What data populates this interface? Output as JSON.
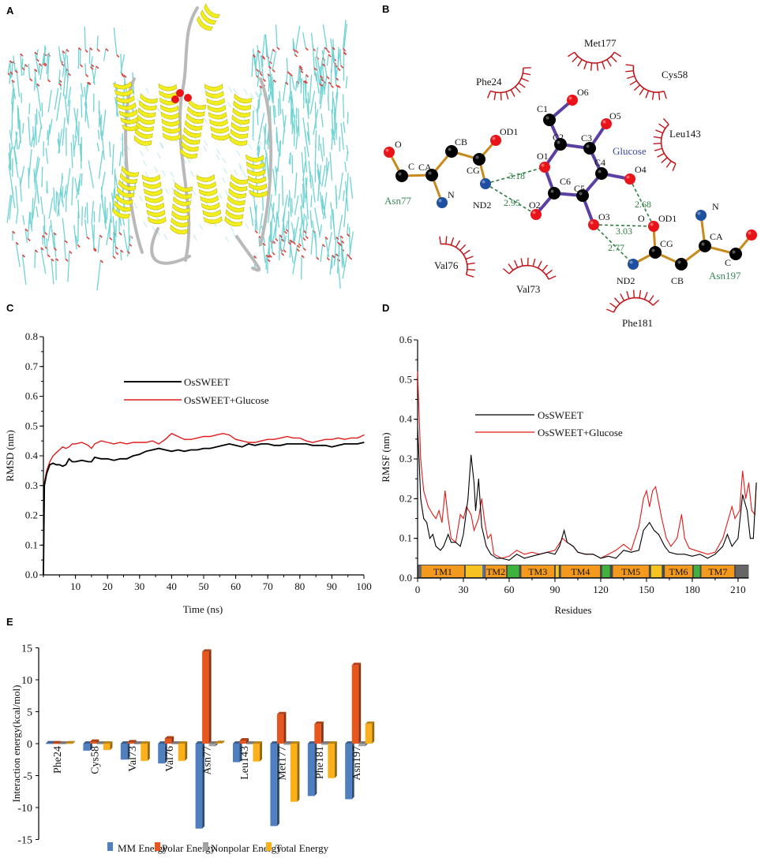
{
  "panel_labels": {
    "a": "A",
    "b": "B",
    "c": "C",
    "d": "D",
    "e": "E"
  },
  "panel_a": {
    "description_colors": {
      "helix": "#f2ee1e",
      "loop": "#b9b9b9",
      "lipid": "#6fd3d3",
      "lipid_oxygen": "#e0413c",
      "ligand": "#e8141a"
    }
  },
  "panel_b": {
    "ligand": {
      "name": "Glucose",
      "atoms": {
        "C1": "C1",
        "C2": "C2",
        "C3": "C3",
        "C4": "C4",
        "C5": "C5",
        "C6": "C6",
        "O1": "O1",
        "O2": "O2",
        "O3": "O3",
        "O4": "O4",
        "O5": "O5",
        "O6": "O6"
      }
    },
    "residue_asn77": {
      "name": "Asn77",
      "atoms": {
        "O": "O",
        "C": "C",
        "CA": "CA",
        "N": "N",
        "CB": "CB",
        "CG": "CG",
        "OD1": "OD1",
        "ND2": "ND2"
      }
    },
    "residue_asn197": {
      "name": "Asn197",
      "atoms": {
        "O": "O",
        "OD1": "OD1",
        "CG": "CG",
        "ND2": "ND2",
        "CB": "CB",
        "CA": "CA",
        "N": "N",
        "C": "C"
      }
    },
    "hbonds": [
      "3.18",
      "2.95",
      "2.68",
      "3.03",
      "2.77"
    ],
    "hydrophobic": [
      "Met177",
      "Phe24",
      "Cys58",
      "Leu143",
      "Val76",
      "Val73",
      "Phe181"
    ],
    "colors": {
      "oxygen": "#e8141a",
      "nitrogen": "#1f4fa0",
      "carbon": "#000000",
      "ligand_bond": "#5b3fa3",
      "residue_bond": "#c98a1c",
      "hbond": "#2e7d3e",
      "hydrophobic": "#c0151b"
    }
  },
  "chart_data": [
    {
      "id": "C",
      "type": "line",
      "xlabel": "Time (ns)",
      "ylabel": "RMSD (nm)",
      "xlim": [
        0,
        100
      ],
      "ylim": [
        0,
        0.8
      ],
      "xticks": [
        "10",
        "20",
        "30",
        "40",
        "50",
        "60",
        "70",
        "80",
        "90",
        "100"
      ],
      "yticks": [
        "0.0",
        "0.1",
        "0.2",
        "0.3",
        "0.4",
        "0.5",
        "0.6",
        "0.7",
        "0.8"
      ],
      "legend": "top-center",
      "x": [
        0,
        0.3,
        1,
        2,
        3,
        4,
        5,
        6,
        7,
        8,
        9,
        10,
        12,
        14,
        15,
        16,
        18,
        20,
        22,
        24,
        26,
        28,
        30,
        32,
        34,
        36,
        38,
        40,
        42,
        44,
        46,
        48,
        50,
        52,
        54,
        56,
        58,
        60,
        62,
        64,
        66,
        68,
        70,
        72,
        74,
        76,
        78,
        80,
        82,
        84,
        86,
        88,
        90,
        92,
        94,
        96,
        98,
        100
      ],
      "series": [
        {
          "name": "OsSWEET",
          "color": "#000000",
          "values": [
            0,
            0.3,
            0.34,
            0.37,
            0.375,
            0.37,
            0.37,
            0.365,
            0.37,
            0.39,
            0.38,
            0.38,
            0.385,
            0.38,
            0.38,
            0.395,
            0.39,
            0.39,
            0.385,
            0.39,
            0.39,
            0.4,
            0.405,
            0.415,
            0.42,
            0.425,
            0.42,
            0.415,
            0.42,
            0.415,
            0.42,
            0.42,
            0.425,
            0.425,
            0.43,
            0.435,
            0.44,
            0.435,
            0.43,
            0.44,
            0.435,
            0.44,
            0.44,
            0.435,
            0.435,
            0.44,
            0.44,
            0.44,
            0.44,
            0.435,
            0.435,
            0.435,
            0.43,
            0.435,
            0.44,
            0.44,
            0.44,
            0.445
          ]
        },
        {
          "name": "OsSWEET+Glucose",
          "color": "#e01a1a",
          "values": [
            0,
            0.31,
            0.35,
            0.38,
            0.4,
            0.41,
            0.42,
            0.43,
            0.425,
            0.43,
            0.44,
            0.44,
            0.445,
            0.435,
            0.425,
            0.44,
            0.45,
            0.445,
            0.44,
            0.445,
            0.44,
            0.445,
            0.445,
            0.445,
            0.45,
            0.44,
            0.455,
            0.475,
            0.465,
            0.455,
            0.455,
            0.46,
            0.465,
            0.465,
            0.47,
            0.475,
            0.47,
            0.455,
            0.45,
            0.445,
            0.445,
            0.45,
            0.455,
            0.455,
            0.46,
            0.465,
            0.46,
            0.46,
            0.45,
            0.445,
            0.45,
            0.455,
            0.455,
            0.46,
            0.455,
            0.46,
            0.46,
            0.47
          ]
        }
      ]
    },
    {
      "id": "D",
      "type": "line",
      "xlabel": "Residues",
      "ylabel": "RMSF (nm)",
      "xlim": [
        0,
        217
      ],
      "ylim": [
        0,
        0.6
      ],
      "xticks": [
        "0",
        "30",
        "60",
        "90",
        "120",
        "150",
        "180",
        "210"
      ],
      "yticks": [
        "0.0",
        "0.1",
        "0.2",
        "0.3",
        "0.4",
        "0.5",
        "0.6"
      ],
      "legend": "top-center",
      "series": [
        {
          "name": "OsSWEET",
          "color": "#000000",
          "x": [
            0,
            1,
            2,
            4,
            6,
            8,
            10,
            12,
            15,
            17,
            20,
            22,
            25,
            28,
            30,
            33,
            35,
            37,
            38,
            40,
            42,
            45,
            48,
            52,
            55,
            60,
            65,
            70,
            75,
            80,
            85,
            90,
            93,
            96,
            98,
            102,
            105,
            110,
            115,
            120,
            125,
            130,
            135,
            140,
            145,
            148,
            152,
            155,
            158,
            162,
            165,
            170,
            175,
            180,
            185,
            190,
            195,
            200,
            203,
            206,
            210,
            213,
            216,
            218,
            220,
            222
          ],
          "values": [
            0.38,
            0.3,
            0.2,
            0.15,
            0.14,
            0.1,
            0.11,
            0.08,
            0.07,
            0.08,
            0.11,
            0.09,
            0.09,
            0.08,
            0.11,
            0.2,
            0.31,
            0.24,
            0.17,
            0.25,
            0.13,
            0.08,
            0.06,
            0.05,
            0.05,
            0.045,
            0.06,
            0.05,
            0.055,
            0.06,
            0.065,
            0.06,
            0.08,
            0.12,
            0.09,
            0.08,
            0.065,
            0.06,
            0.06,
            0.05,
            0.055,
            0.05,
            0.07,
            0.065,
            0.07,
            0.12,
            0.14,
            0.12,
            0.11,
            0.08,
            0.065,
            0.06,
            0.06,
            0.055,
            0.06,
            0.05,
            0.06,
            0.08,
            0.11,
            0.08,
            0.1,
            0.21,
            0.17,
            0.1,
            0.1,
            0.24
          ]
        },
        {
          "name": "OsSWEET+Glucose",
          "color": "#e01a1a",
          "x": [
            0,
            2,
            4,
            7,
            10,
            12,
            14,
            16,
            18,
            20,
            22,
            25,
            28,
            30,
            32,
            35,
            37,
            40,
            42,
            44,
            46,
            48,
            50,
            55,
            60,
            65,
            70,
            75,
            80,
            85,
            90,
            95,
            98,
            102,
            105,
            110,
            115,
            120,
            125,
            130,
            135,
            140,
            145,
            148,
            150,
            152,
            154,
            156,
            160,
            163,
            166,
            170,
            173,
            175,
            178,
            182,
            186,
            190,
            195,
            200,
            203,
            206,
            208,
            211,
            213,
            215,
            217,
            219,
            221,
            222
          ],
          "values": [
            0.52,
            0.3,
            0.22,
            0.18,
            0.16,
            0.15,
            0.17,
            0.14,
            0.22,
            0.15,
            0.1,
            0.09,
            0.16,
            0.15,
            0.18,
            0.16,
            0.12,
            0.15,
            0.2,
            0.14,
            0.1,
            0.11,
            0.06,
            0.05,
            0.055,
            0.07,
            0.06,
            0.065,
            0.06,
            0.065,
            0.07,
            0.1,
            0.09,
            0.08,
            0.065,
            0.06,
            0.06,
            0.05,
            0.06,
            0.07,
            0.085,
            0.07,
            0.13,
            0.2,
            0.22,
            0.18,
            0.22,
            0.23,
            0.15,
            0.1,
            0.08,
            0.1,
            0.16,
            0.1,
            0.075,
            0.07,
            0.065,
            0.06,
            0.065,
            0.1,
            0.14,
            0.18,
            0.15,
            0.17,
            0.27,
            0.2,
            0.24,
            0.17,
            0.16,
            0.24
          ]
        }
      ],
      "topology_bar": [
        {
          "label": "",
          "start": 0,
          "end": 2.5,
          "color": "#666666"
        },
        {
          "label": "TM1",
          "start": 2.5,
          "end": 30.5,
          "color": "#f39a1e"
        },
        {
          "label": "",
          "start": 31.5,
          "end": 42.5,
          "color": "#f6c320"
        },
        {
          "label": "",
          "start": 42.5,
          "end": 44,
          "color": "#5a6fb0"
        },
        {
          "label": "TM2",
          "start": 44.5,
          "end": 58,
          "color": "#f39a1e"
        },
        {
          "label": "",
          "start": 59,
          "end": 66.5,
          "color": "#3db33d"
        },
        {
          "label": "TM3",
          "start": 68,
          "end": 89.5,
          "color": "#f39a1e"
        },
        {
          "label": "",
          "start": 90.5,
          "end": 92.5,
          "color": "#f6c320"
        },
        {
          "label": "TM4",
          "start": 94,
          "end": 119.5,
          "color": "#f39a1e"
        },
        {
          "label": "",
          "start": 121,
          "end": 126,
          "color": "#3db33d"
        },
        {
          "label": "TM5",
          "start": 128,
          "end": 151.5,
          "color": "#f39a1e"
        },
        {
          "label": "",
          "start": 153,
          "end": 160,
          "color": "#f6c320"
        },
        {
          "label": "TM6",
          "start": 162,
          "end": 180,
          "color": "#f39a1e"
        },
        {
          "label": "",
          "start": 181,
          "end": 185,
          "color": "#3db33d"
        },
        {
          "label": "TM7",
          "start": 186,
          "end": 207.5,
          "color": "#f39a1e"
        },
        {
          "label": "",
          "start": 208.5,
          "end": 217,
          "color": "#666666"
        }
      ]
    },
    {
      "id": "E",
      "type": "bar",
      "ylabel": "Interaction energy(kcal/mol)",
      "ylim": [
        -15,
        15
      ],
      "yticks": [
        "-15",
        "-10",
        "-5",
        "0",
        "5",
        "10",
        "15"
      ],
      "categories": [
        "Phe24",
        "Cys58",
        "Val73",
        "Val76",
        "Asn77",
        "Leu143",
        "Met177",
        "Phe181",
        "Asn197"
      ],
      "legend": "bottom",
      "series": [
        {
          "name": "MM Energy",
          "color": "#4f7fbf",
          "values": [
            0.05,
            -1.1,
            -2.5,
            -3.1,
            -13.3,
            -2.9,
            -12.9,
            -8.2,
            -8.7
          ]
        },
        {
          "name": "Polar Energy",
          "color": "#e8561f",
          "values": [
            0.05,
            0.3,
            0.2,
            0.8,
            14.4,
            0.5,
            4.6,
            3.1,
            12.3
          ]
        },
        {
          "name": "Nonpolar Energy",
          "color": "#a3a3a3",
          "values": [
            0.0,
            -0.1,
            -0.1,
            -0.1,
            -0.4,
            -0.1,
            -0.2,
            -0.2,
            -0.4
          ]
        },
        {
          "name": "Total Energy",
          "color": "#fbb01a",
          "values": [
            0.05,
            -1.0,
            -2.7,
            -2.7,
            0.1,
            -2.8,
            -9.1,
            -5.4,
            3.1
          ]
        }
      ]
    }
  ]
}
